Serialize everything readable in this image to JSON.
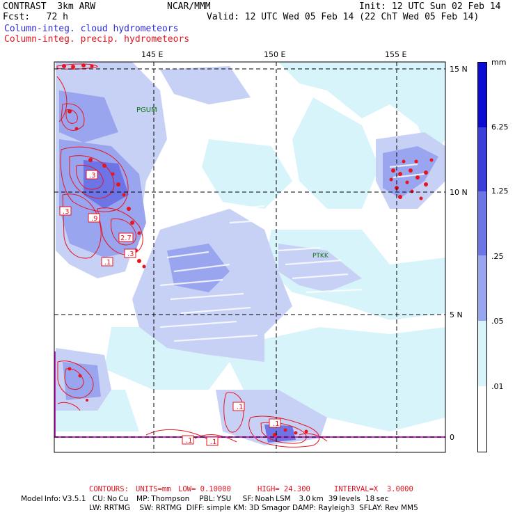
{
  "header": {
    "line1_left": "CONTRAST  3km ARW",
    "line1_mid": "NCAR/MMM",
    "line1_right": "Init: 12 UTC Sun 02 Feb 14",
    "line2_left": "Fcst:   72 h",
    "line2_right": "Valid: 12 UTC Wed 05 Feb 14 (22 ChT Wed 05 Feb 14)",
    "line3": "Column-integ. cloud hydrometeors",
    "line4": "Column-integ. precip. hydrometeors"
  },
  "map": {
    "lon_labels": [
      "145 E",
      "150 E",
      "155 E"
    ],
    "lat_labels": [
      "15 N",
      "10 N",
      "5 N",
      "0"
    ],
    "stations": [
      "PGUM",
      "PTKK"
    ],
    "contour_labels": [
      ".3",
      ".3",
      ".9",
      "2.7",
      ".3",
      ".1",
      ".1",
      ".1",
      ".1",
      ".1"
    ],
    "colors": {
      "level_01": "#d8f4fb",
      "level_05": "#c7d1f5",
      "level_25": "#9aa5ef",
      "level_125": "#6c74e6",
      "level_625": "#3a3fdc",
      "level_max": "#0a0ad2",
      "contour": "#e8141e",
      "station": "#0a7a0a",
      "boundary": "#cc22cc"
    }
  },
  "colorbar": {
    "unit": "mm",
    "labels": [
      "6.25",
      "1.25",
      ".25",
      ".05",
      ".01"
    ]
  },
  "footer": {
    "contours_label": "CONTOURS:",
    "units": "UNITS=mm",
    "low": "LOW= 0.10000",
    "high": "HIGH= 24.300",
    "interval": "INTERVAL=X  3.0000",
    "model_info": "Model Info: V3.5.1    CU: No Cu     MP: Thompson      PBL: YSU       SF: Noah LSM     3.0 km   39 levels   18 sec",
    "model_info2": "LW: RRTMG    SW: RRTMG  DIFF: simple KM: 3D Smagor DAMP: Rayleigh3  SFLAY: Rev MM5"
  }
}
